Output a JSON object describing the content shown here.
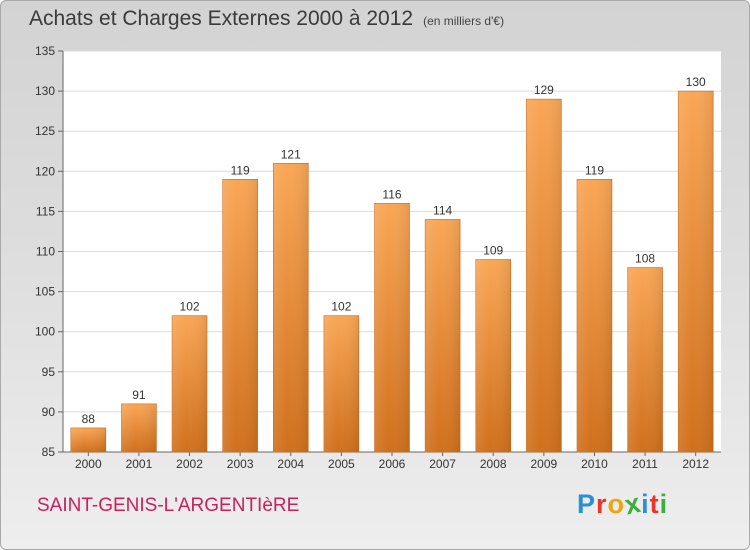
{
  "header": {
    "title": "Achats et Charges Externes 2000 à 2012",
    "subtitle": "(en milliers d'€)"
  },
  "footer": {
    "commune": "SAINT-GENIS-L'ARGENTIèRE",
    "brand_letters": [
      {
        "ch": "P",
        "color": "#2a8fd4"
      },
      {
        "ch": "r",
        "color": "#e8362b"
      },
      {
        "ch": "o",
        "color": "#f2a20c"
      },
      {
        "ch": "x",
        "color": "#3cae3c"
      },
      {
        "ch": "i",
        "color": "#2a8fd4"
      },
      {
        "ch": "t",
        "color": "#e8362b"
      },
      {
        "ch": "i",
        "color": "#3cae3c"
      }
    ]
  },
  "chart_data": {
    "type": "bar",
    "categories": [
      "2000",
      "2001",
      "2002",
      "2003",
      "2004",
      "2005",
      "2006",
      "2007",
      "2008",
      "2009",
      "2010",
      "2011",
      "2012"
    ],
    "values": [
      88,
      91,
      102,
      119,
      121,
      102,
      116,
      114,
      109,
      129,
      119,
      108,
      130
    ],
    "title": "Achats et Charges Externes 2000 à 2012",
    "ylim": [
      85,
      135
    ],
    "yticks": [
      85,
      90,
      95,
      100,
      105,
      110,
      115,
      120,
      125,
      130,
      135
    ],
    "grid": true,
    "bar_color": "#e8892f"
  }
}
